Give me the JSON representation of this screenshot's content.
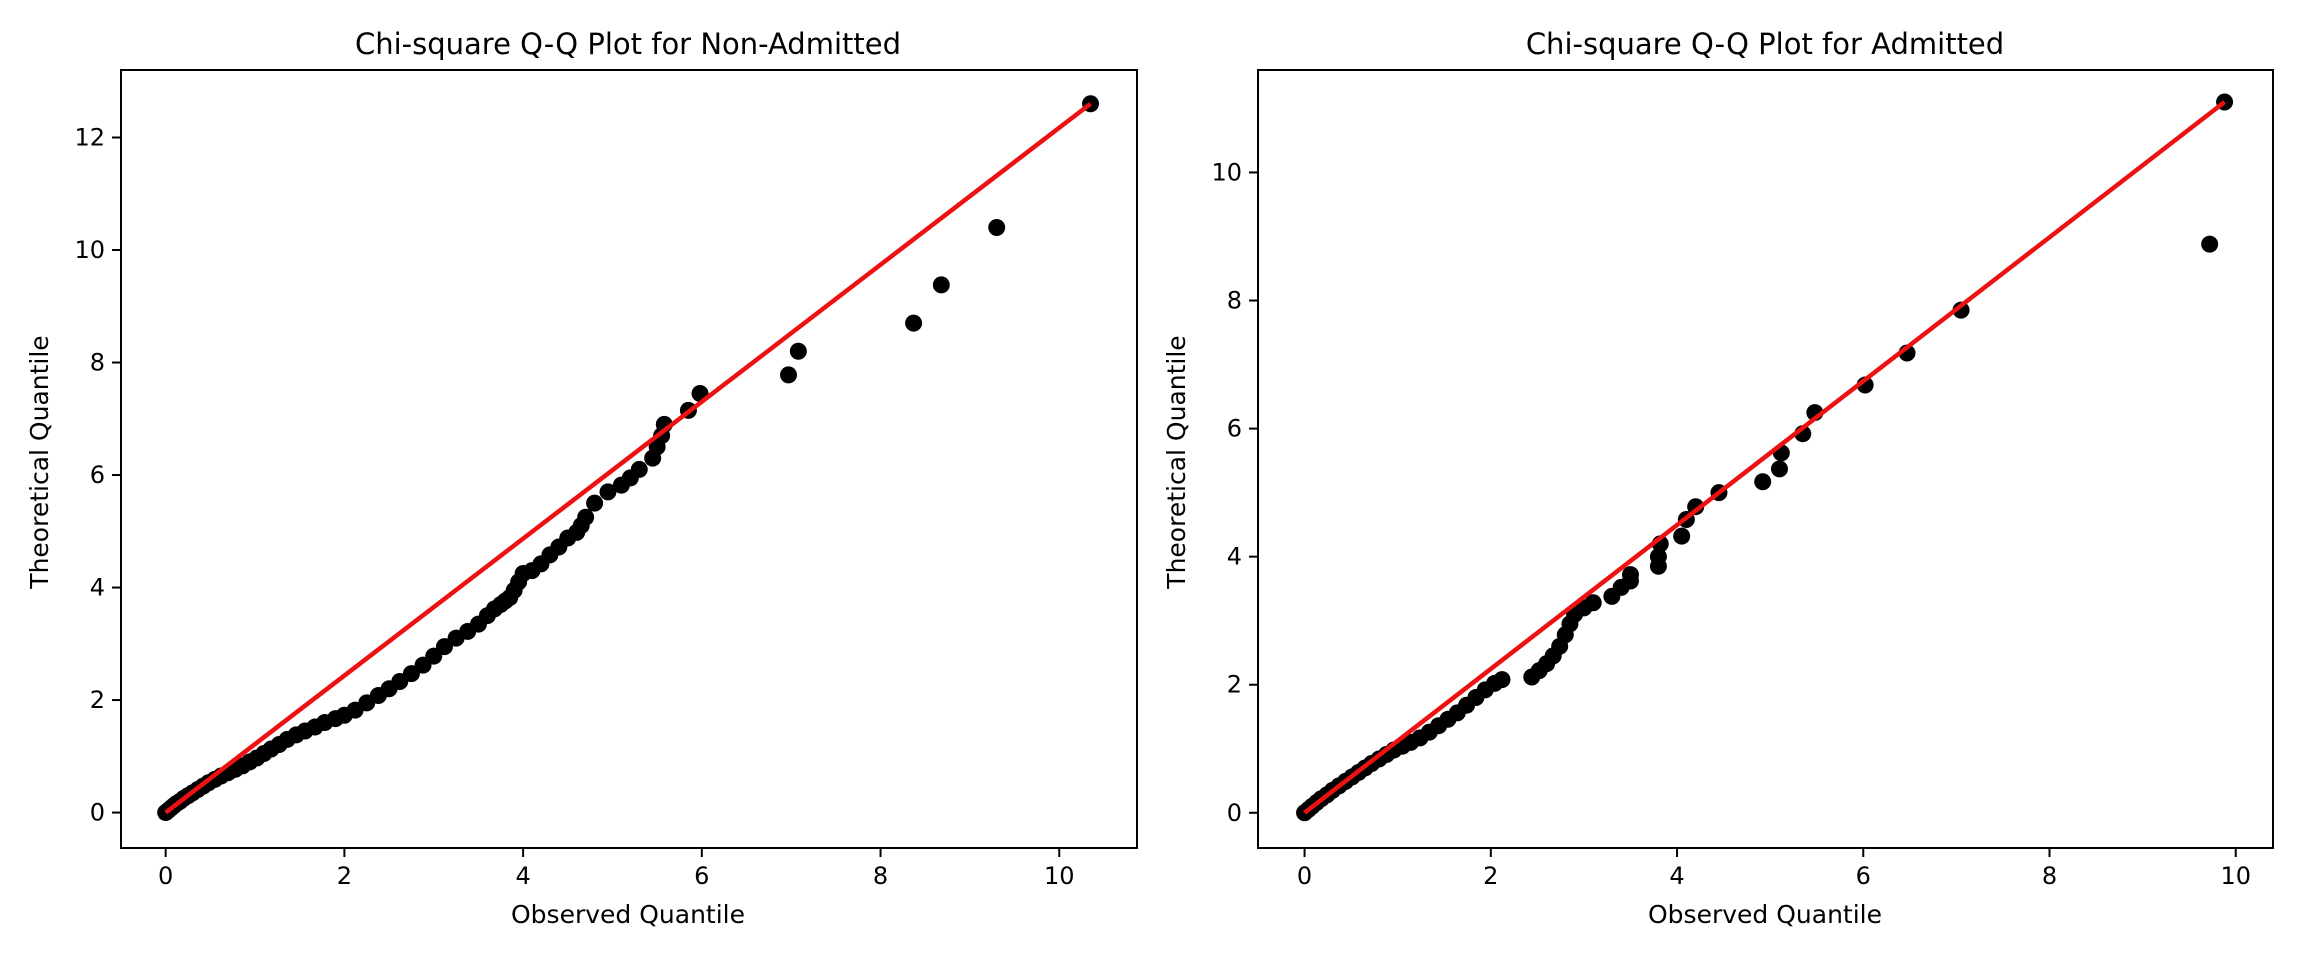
{
  "colors": {
    "points": "#000000",
    "reference_line": "#ee1111",
    "axes": "#000000",
    "background": "#ffffff"
  },
  "chart_data": [
    {
      "type": "scatter",
      "title": "Chi-square Q-Q Plot for Non-Admitted",
      "xlabel": "Observed Quantile",
      "ylabel": "Theoretical Quantile",
      "xlim": [
        -0.5,
        10.87
      ],
      "ylim": [
        -0.63,
        13.2
      ],
      "xticks": [
        0,
        2,
        4,
        6,
        8,
        10
      ],
      "yticks": [
        0,
        2,
        4,
        6,
        8,
        10,
        12
      ],
      "grid": false,
      "reference_line": {
        "x": [
          0,
          10.35
        ],
        "y": [
          0,
          12.6
        ]
      },
      "series": [
        {
          "x": [
            0.0,
            0.03,
            0.06,
            0.09,
            0.12,
            0.16,
            0.2,
            0.25,
            0.3,
            0.36,
            0.42,
            0.48,
            0.55,
            0.62,
            0.7,
            0.78,
            0.86,
            0.94,
            1.02,
            1.1,
            1.18,
            1.27,
            1.36,
            1.46,
            1.56,
            1.67,
            1.78,
            1.9,
            2.0,
            2.12,
            2.25,
            2.38,
            2.5,
            2.62,
            2.75,
            2.88,
            3.0,
            3.12,
            3.25,
            3.38,
            3.5,
            3.6,
            3.68,
            3.75,
            3.8,
            3.85,
            3.9,
            3.95,
            4.0,
            4.1,
            4.2,
            4.3,
            4.4,
            4.5,
            4.6,
            4.65,
            4.7,
            4.8,
            4.95,
            5.1,
            5.2,
            5.3,
            5.45,
            5.5,
            5.55,
            5.58,
            5.85,
            5.98,
            6.97,
            7.08,
            8.37,
            8.68,
            9.3,
            10.35
          ],
          "y": [
            0.0,
            0.04,
            0.08,
            0.12,
            0.16,
            0.2,
            0.25,
            0.3,
            0.35,
            0.41,
            0.47,
            0.53,
            0.59,
            0.65,
            0.71,
            0.77,
            0.83,
            0.9,
            0.97,
            1.05,
            1.13,
            1.21,
            1.3,
            1.38,
            1.45,
            1.52,
            1.6,
            1.67,
            1.73,
            1.82,
            1.95,
            2.08,
            2.2,
            2.33,
            2.47,
            2.62,
            2.78,
            2.95,
            3.1,
            3.22,
            3.35,
            3.5,
            3.62,
            3.7,
            3.76,
            3.82,
            3.95,
            4.1,
            4.25,
            4.3,
            4.42,
            4.58,
            4.72,
            4.88,
            4.98,
            5.1,
            5.25,
            5.5,
            5.7,
            5.82,
            5.95,
            6.1,
            6.3,
            6.5,
            6.7,
            6.9,
            7.15,
            7.45,
            7.78,
            8.2,
            8.7,
            9.38,
            10.4,
            12.6
          ]
        }
      ]
    },
    {
      "type": "scatter",
      "title": "Chi-square Q-Q Plot for Admitted",
      "xlabel": "Observed Quantile",
      "ylabel": "Theoretical Quantile",
      "xlim": [
        -0.5,
        10.4
      ],
      "ylim": [
        -0.55,
        11.6
      ],
      "xticks": [
        0,
        2,
        4,
        6,
        8,
        10
      ],
      "yticks": [
        0,
        2,
        4,
        6,
        8,
        10
      ],
      "grid": false,
      "reference_line": {
        "x": [
          0,
          9.88
        ],
        "y": [
          0,
          11.1
        ]
      },
      "series": [
        {
          "x": [
            0.0,
            0.04,
            0.08,
            0.13,
            0.18,
            0.24,
            0.3,
            0.37,
            0.44,
            0.51,
            0.58,
            0.65,
            0.72,
            0.8,
            0.88,
            0.96,
            1.05,
            1.14,
            1.24,
            1.34,
            1.44,
            1.54,
            1.64,
            1.74,
            1.84,
            1.94,
            2.04,
            2.12,
            2.44,
            2.52,
            2.6,
            2.67,
            2.74,
            2.8,
            2.85,
            2.9,
            3.0,
            3.1,
            3.3,
            3.4,
            3.5,
            3.5,
            3.8,
            3.8,
            3.82,
            4.05,
            4.1,
            4.2,
            4.45,
            4.92,
            5.1,
            5.12,
            5.35,
            5.48,
            6.02,
            6.47,
            7.05,
            9.72,
            9.88
          ],
          "y": [
            0.0,
            0.05,
            0.1,
            0.16,
            0.22,
            0.28,
            0.35,
            0.42,
            0.49,
            0.56,
            0.63,
            0.7,
            0.77,
            0.84,
            0.91,
            0.98,
            1.04,
            1.1,
            1.17,
            1.26,
            1.36,
            1.46,
            1.56,
            1.68,
            1.8,
            1.92,
            2.02,
            2.08,
            2.12,
            2.22,
            2.33,
            2.45,
            2.6,
            2.78,
            2.95,
            3.1,
            3.2,
            3.28,
            3.38,
            3.52,
            3.62,
            3.72,
            3.85,
            4.0,
            4.2,
            4.32,
            4.58,
            4.78,
            5.0,
            5.17,
            5.37,
            5.62,
            5.92,
            6.25,
            6.68,
            7.18,
            7.85,
            8.88,
            11.1
          ]
        }
      ]
    }
  ]
}
